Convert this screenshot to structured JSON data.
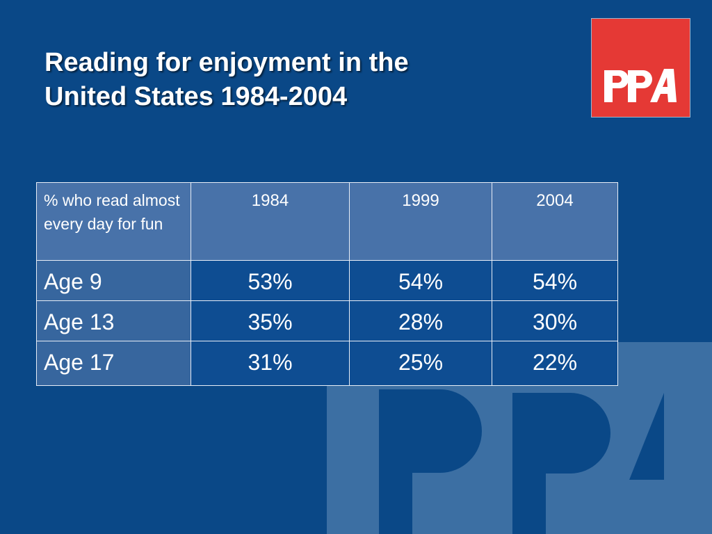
{
  "slide": {
    "title_line1": "Reading for enjoyment in the",
    "title_line2": "United States 1984-2004",
    "logo_text": "PPA",
    "colors": {
      "background": "#0a4887",
      "logo": "#e53935",
      "text": "#ffffff"
    }
  },
  "table": {
    "header": [
      "% who read almost every day for fun",
      "1984",
      "1999",
      "2004"
    ],
    "rows": [
      {
        "label": "Age 9",
        "values": [
          "53%",
          "54%",
          "54%"
        ]
      },
      {
        "label": "Age 13",
        "values": [
          "35%",
          "28%",
          "30%"
        ]
      },
      {
        "label": "Age 17",
        "values": [
          "31%",
          "25%",
          "22%"
        ]
      }
    ]
  }
}
